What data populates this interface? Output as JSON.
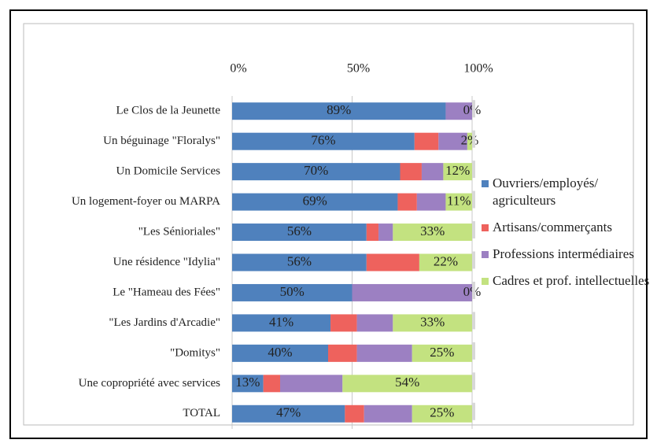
{
  "chart_data": {
    "type": "stacked_bar_horizontal",
    "categories": [
      "Le Clos de la Jeunette",
      "Un béguinage \"Floralys\"",
      "Un Domicile Services",
      "Un logement-foyer ou MARPA",
      "\"Les Sénioriales\"",
      "Une résidence \"Idylia\"",
      "Le \"Hameau des Fées\"",
      "\"Les Jardins d'Arcadie\"",
      "\"Domitys\"",
      "Une copropriété avec services",
      "TOTAL"
    ],
    "series": [
      {
        "name": "Ouvriers/employés/ agriculteurs",
        "color": "#4f81bd",
        "values": [
          89,
          76,
          70,
          69,
          56,
          56,
          50,
          41,
          40,
          13,
          47
        ],
        "value_labels": [
          "89%",
          "76%",
          "70%",
          "69%",
          "56%",
          "56%",
          "50%",
          "41%",
          "40%",
          "13%",
          "47%"
        ]
      },
      {
        "name": "Artisans/commerçants",
        "color": "#ee625d",
        "values": [
          0,
          10,
          9,
          8,
          5,
          22,
          0,
          11,
          12,
          7,
          8
        ]
      },
      {
        "name": "Professions intermédiaires",
        "color": "#9c80c2",
        "values": [
          11,
          12,
          9,
          12,
          6,
          0,
          50,
          15,
          23,
          26,
          20
        ]
      },
      {
        "name": "Cadres et prof. intellectuelles",
        "color": "#c3e280",
        "values": [
          0,
          2,
          12,
          11,
          33,
          22,
          0,
          33,
          25,
          54,
          25
        ],
        "value_labels": [
          "0%",
          "2%",
          "12%",
          "11%",
          "33%",
          "22%",
          "0%",
          "33%",
          "25%",
          "54%",
          "25%"
        ]
      }
    ],
    "xlim": [
      0,
      100
    ],
    "xticks": [
      {
        "value": 0,
        "label": "0%"
      },
      {
        "value": 50,
        "label": "50%"
      },
      {
        "value": 100,
        "label": "100%"
      }
    ],
    "grid": true
  }
}
